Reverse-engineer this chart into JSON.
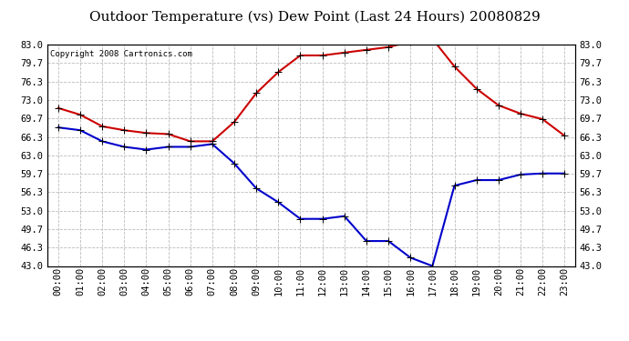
{
  "title": "Outdoor Temperature (vs) Dew Point (Last 24 Hours) 20080829",
  "copyright": "Copyright 2008 Cartronics.com",
  "hours": [
    0,
    1,
    2,
    3,
    4,
    5,
    6,
    7,
    8,
    9,
    10,
    11,
    12,
    13,
    14,
    15,
    16,
    17,
    18,
    19,
    20,
    21,
    22,
    23
  ],
  "hour_labels": [
    "00:00",
    "01:00",
    "02:00",
    "03:00",
    "04:00",
    "05:00",
    "06:00",
    "07:00",
    "08:00",
    "09:00",
    "10:00",
    "11:00",
    "12:00",
    "13:00",
    "14:00",
    "15:00",
    "16:00",
    "17:00",
    "18:00",
    "19:00",
    "20:00",
    "21:00",
    "22:00",
    "23:00"
  ],
  "temp": [
    71.5,
    70.3,
    68.2,
    67.5,
    67.0,
    66.8,
    65.5,
    65.5,
    69.0,
    74.2,
    78.0,
    81.0,
    81.0,
    81.5,
    82.0,
    82.5,
    83.5,
    84.0,
    79.0,
    75.0,
    72.0,
    70.5,
    69.5,
    66.5
  ],
  "dew": [
    68.0,
    67.5,
    65.5,
    64.5,
    64.0,
    64.5,
    64.5,
    65.0,
    61.5,
    57.0,
    54.5,
    51.5,
    51.5,
    52.0,
    47.5,
    47.5,
    44.5,
    43.0,
    57.5,
    58.5,
    58.5,
    59.5,
    59.7,
    59.7
  ],
  "temp_color": "#cc0000",
  "dew_color": "#0000cc",
  "marker": "+",
  "markersize": 6,
  "linewidth": 1.5,
  "ylim": [
    43.0,
    83.0
  ],
  "yticks": [
    43.0,
    46.3,
    49.7,
    53.0,
    56.3,
    59.7,
    63.0,
    66.3,
    69.7,
    73.0,
    76.3,
    79.7,
    83.0
  ],
  "bg_color": "#ffffff",
  "plot_bg": "#ffffff",
  "grid_color": "#bbbbbb",
  "title_fontsize": 11,
  "copyright_fontsize": 6.5,
  "tick_fontsize": 7.5
}
